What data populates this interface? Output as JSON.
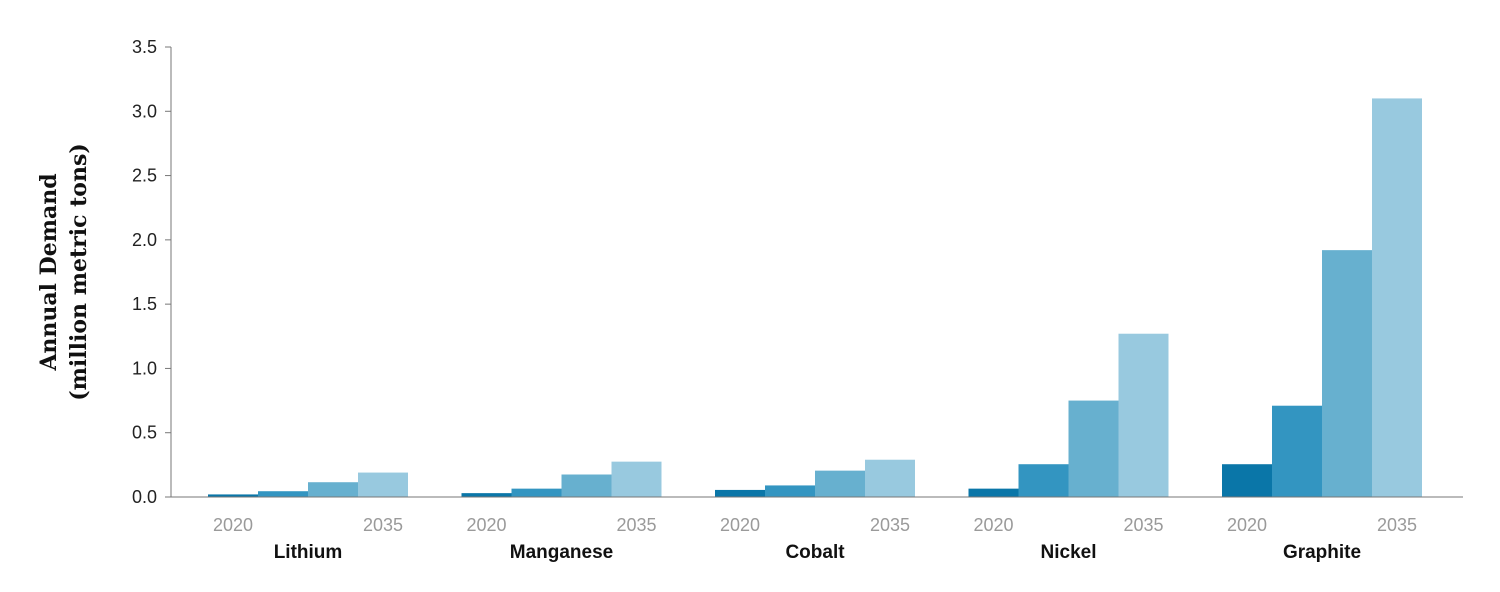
{
  "chart_data": {
    "type": "bar",
    "ylabel_line1": "Annual Demand",
    "ylabel_line2": "(million metric tons)",
    "ylim": [
      0,
      3.5
    ],
    "yticks": [
      "0.0",
      "0.5",
      "1.0",
      "1.5",
      "2.0",
      "2.5",
      "3.0",
      "3.5"
    ],
    "grid": false,
    "categories": [
      "Lithium",
      "Manganese",
      "Cobalt",
      "Nickel",
      "Graphite"
    ],
    "year_labels": {
      "first": "2020",
      "last": "2035"
    },
    "series": [
      {
        "values": [
          0.02,
          0.03,
          0.055,
          0.065,
          0.255
        ],
        "color": "#0a76a8"
      },
      {
        "values": [
          0.045,
          0.065,
          0.09,
          0.255,
          0.71
        ],
        "color": "#3395c1"
      },
      {
        "values": [
          0.115,
          0.175,
          0.205,
          0.75,
          1.92
        ],
        "color": "#67b0cf"
      },
      {
        "values": [
          0.19,
          0.275,
          0.29,
          1.27,
          3.1
        ],
        "color": "#98c9df"
      }
    ]
  }
}
